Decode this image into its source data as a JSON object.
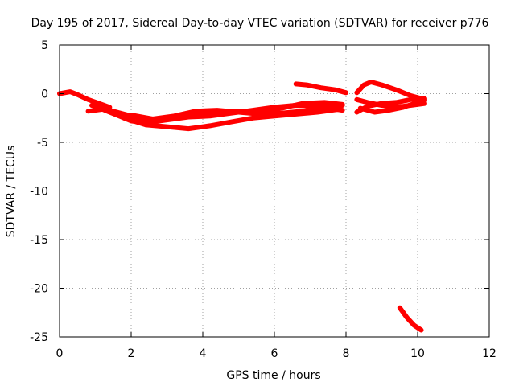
{
  "chart_data": {
    "type": "line",
    "title": "Day 195 of 2017, Sidereal Day-to-day VTEC variation (SDTVAR) for receiver p776",
    "xlabel": "GPS time / hours",
    "ylabel": "SDTVAR / TECUs",
    "xlim": [
      0,
      12
    ],
    "ylim": [
      -25,
      5
    ],
    "xticks": [
      "0",
      "2",
      "4",
      "6",
      "8",
      "10",
      "12"
    ],
    "yticks": [
      "5",
      "0",
      "-5",
      "-10",
      "-15",
      "-20",
      "-25"
    ],
    "grid": true,
    "series_color": "#ff0000",
    "series": [
      {
        "x": [
          0.0,
          0.3,
          0.5,
          0.8,
          1.1,
          1.4
        ],
        "y": [
          0.0,
          0.2,
          -0.1,
          -0.6,
          -1.0,
          -1.4
        ]
      },
      {
        "x": [
          0.8,
          1.2,
          1.6,
          2.0,
          2.4,
          3.0,
          3.6,
          4.2,
          4.8,
          5.4,
          6.0,
          6.6,
          7.2,
          7.9
        ],
        "y": [
          -1.8,
          -1.6,
          -2.2,
          -2.8,
          -3.0,
          -2.7,
          -2.4,
          -2.3,
          -2.0,
          -1.7,
          -1.4,
          -1.2,
          -1.3,
          -1.7
        ]
      },
      {
        "x": [
          0.9,
          1.4,
          2.0,
          2.6,
          3.2,
          3.8,
          4.4,
          5.0,
          5.6,
          6.2,
          6.8,
          7.4,
          7.9
        ],
        "y": [
          -1.2,
          -1.7,
          -2.3,
          -2.7,
          -2.5,
          -2.2,
          -1.9,
          -1.8,
          -1.9,
          -1.5,
          -1.0,
          -0.9,
          -1.1
        ]
      },
      {
        "x": [
          1.8,
          2.4,
          3.0,
          3.6,
          4.2,
          4.8,
          5.4,
          6.0,
          6.6,
          7.2,
          7.8
        ],
        "y": [
          -2.5,
          -3.2,
          -3.4,
          -3.6,
          -3.3,
          -2.9,
          -2.5,
          -2.3,
          -2.1,
          -1.9,
          -1.6
        ]
      },
      {
        "x": [
          2.0,
          2.6,
          3.2,
          3.8,
          4.4,
          5.0,
          5.6,
          6.2,
          6.8,
          7.4,
          7.9
        ],
        "y": [
          -2.2,
          -2.6,
          -2.3,
          -1.8,
          -1.7,
          -1.9,
          -2.1,
          -2.0,
          -1.8,
          -1.4,
          -1.2
        ]
      },
      {
        "x": [
          6.6,
          6.9,
          7.3,
          7.7,
          8.0
        ],
        "y": [
          1.0,
          0.9,
          0.6,
          0.4,
          0.1
        ]
      },
      {
        "x": [
          8.3,
          8.5,
          8.7,
          9.0,
          9.4,
          9.8,
          10.2
        ],
        "y": [
          0.1,
          0.9,
          1.2,
          0.9,
          0.4,
          -0.2,
          -0.6
        ]
      },
      {
        "x": [
          8.3,
          8.6,
          9.0,
          9.4,
          9.8,
          10.2
        ],
        "y": [
          -1.9,
          -1.3,
          -1.0,
          -0.9,
          -0.6,
          -0.5
        ]
      },
      {
        "x": [
          8.3,
          8.6,
          9.0,
          9.4,
          9.8,
          10.2
        ],
        "y": [
          -0.6,
          -0.9,
          -1.2,
          -1.4,
          -1.2,
          -1.0
        ]
      },
      {
        "x": [
          8.4,
          8.8,
          9.2,
          9.6,
          10.0,
          10.2
        ],
        "y": [
          -1.5,
          -1.9,
          -1.7,
          -1.4,
          -0.9,
          -0.7
        ]
      },
      {
        "x": [
          9.5,
          9.7,
          9.9,
          10.1
        ],
        "y": [
          -22.0,
          -23.0,
          -23.8,
          -24.3
        ]
      }
    ]
  }
}
